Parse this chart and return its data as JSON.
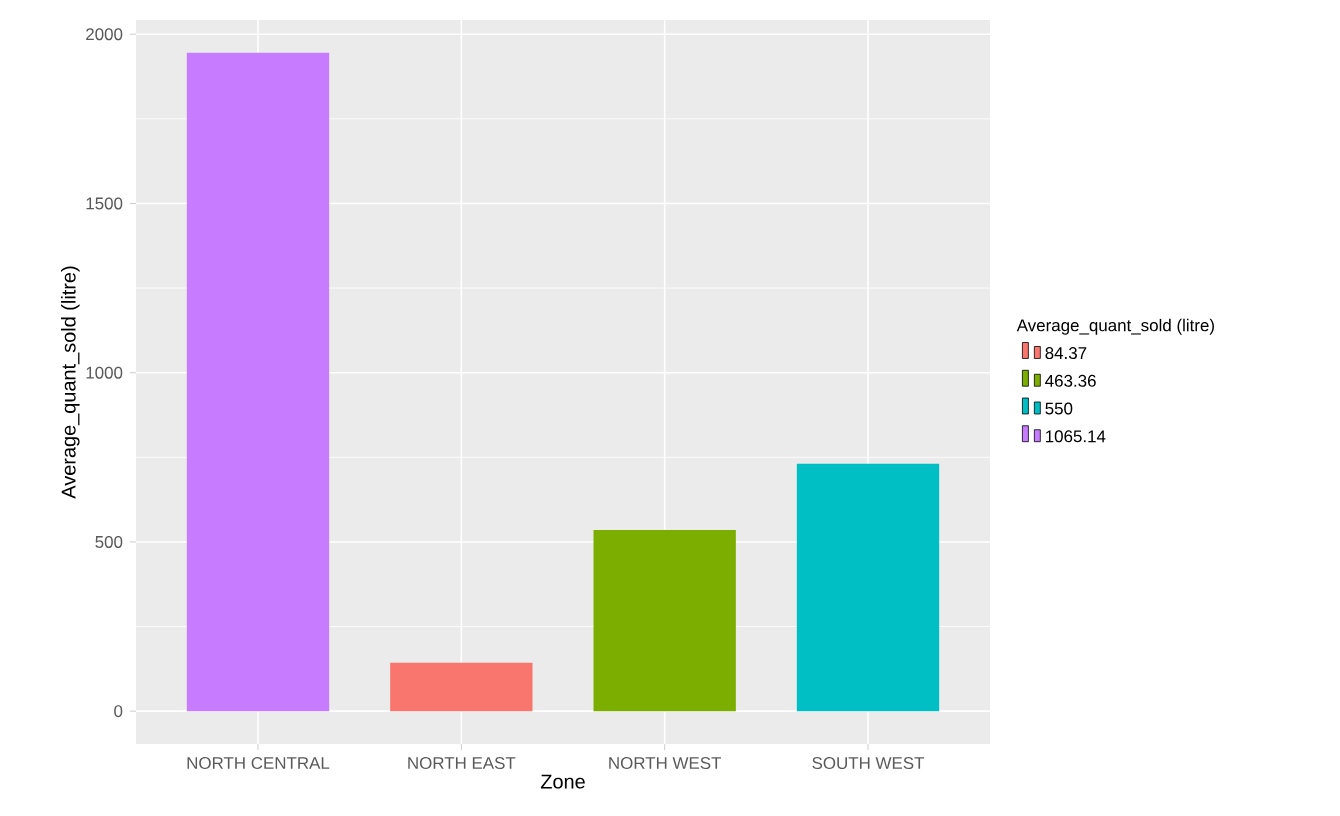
{
  "chart_data": {
    "type": "bar",
    "xlabel": "Zone",
    "ylabel": "Average_quant_sold (litre)",
    "legend_title": "Average_quant_sold (litre)",
    "categories": [
      "NORTH CENTRAL",
      "NORTH EAST",
      "NORTH WEST",
      "SOUTH WEST"
    ],
    "series": [
      {
        "name": "84.37",
        "color": "#f8766d",
        "values": [
          null,
          143,
          null,
          null
        ]
      },
      {
        "name": "463.36",
        "color": "#7cae00",
        "values": [
          null,
          null,
          535,
          null
        ]
      },
      {
        "name": "550",
        "color": "#00bfc4",
        "values": [
          null,
          null,
          null,
          731
        ]
      },
      {
        "name": "1065.14",
        "color": "#c77cff",
        "values": [
          1945,
          null,
          null,
          null
        ]
      }
    ],
    "ylim": [
      -97,
      2042
    ],
    "yticks": [
      0,
      500,
      1000,
      1500,
      2000
    ],
    "grid": true,
    "legend": "right"
  }
}
